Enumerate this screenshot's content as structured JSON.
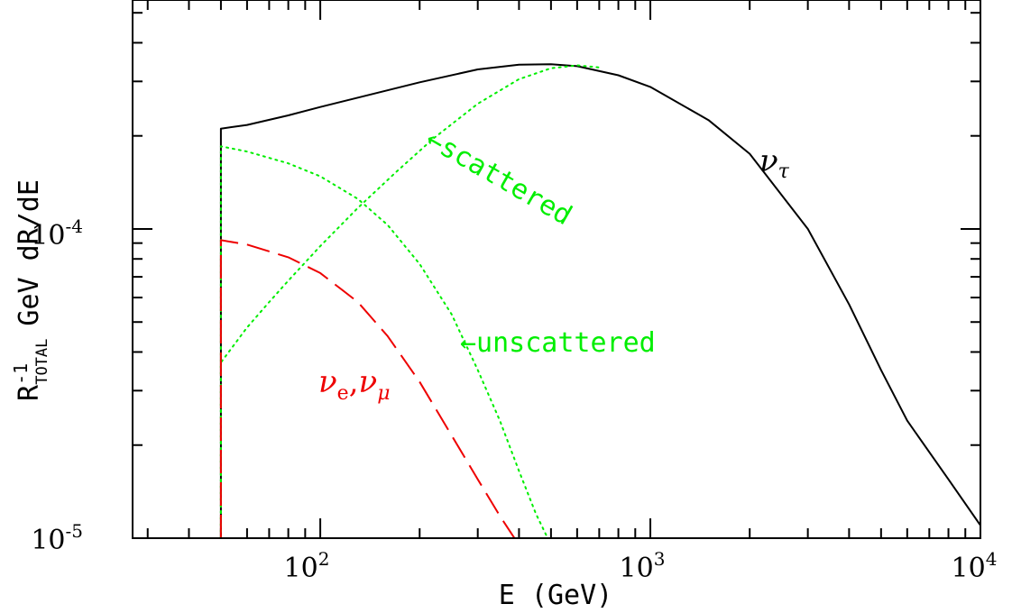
{
  "chart_data": {
    "type": "line",
    "xscale": "log",
    "yscale": "log",
    "xlim": [
      27,
      10000
    ],
    "ylim": [
      1e-05,
      0.00055
    ],
    "xlabel": "E (GeV)",
    "ylabel": {
      "base": "R",
      "sup": "-1",
      "sub": "TOTAL",
      "rest": "GeV dR/dE"
    },
    "x_ticks": [
      {
        "value": 100,
        "mantissa": "10",
        "exp": "2"
      },
      {
        "value": 1000,
        "mantissa": "10",
        "exp": "3"
      },
      {
        "value": 10000,
        "mantissa": "10",
        "exp": "4"
      }
    ],
    "y_ticks": [
      {
        "value": 1e-05,
        "mantissa": "10",
        "exp": "-5"
      },
      {
        "value": 0.0001,
        "mantissa": "10",
        "exp": "-4"
      }
    ],
    "series": [
      {
        "name": "nu-tau",
        "color": "#000000",
        "style": "solid",
        "x": [
          50,
          50,
          60,
          80,
          100,
          150,
          200,
          300,
          400,
          500,
          600,
          800,
          1000,
          1500,
          2000,
          3000,
          4000,
          5000,
          6000,
          8000,
          10000
        ],
        "y": [
          1e-05,
          0.000211,
          0.000217,
          0.000233,
          0.000248,
          0.000276,
          0.000298,
          0.000328,
          0.00034,
          0.000341,
          0.000336,
          0.000314,
          0.000288,
          0.000225,
          0.000175,
          0.0001,
          5.7e-05,
          3.5e-05,
          2.4e-05,
          1.55e-05,
          1.1e-05
        ]
      },
      {
        "name": "scattered",
        "color": "#00ee00",
        "style": "dotted",
        "x": [
          50,
          50,
          60,
          70,
          80,
          100,
          130,
          170,
          220,
          300,
          400,
          500,
          600,
          700
        ],
        "y": [
          1e-05,
          3.7e-05,
          4.8e-05,
          5.8e-05,
          6.8e-05,
          8.8e-05,
          0.000117,
          0.000153,
          0.000196,
          0.000254,
          0.000305,
          0.000331,
          0.000338,
          0.000333
        ]
      },
      {
        "name": "unscattered",
        "color": "#00ee00",
        "style": "dotted",
        "x": [
          50,
          50,
          60,
          80,
          100,
          130,
          160,
          200,
          250,
          300,
          350,
          400,
          450,
          500
        ],
        "y": [
          1e-05,
          0.000185,
          0.000178,
          0.000163,
          0.000148,
          0.000125,
          0.000103,
          7.7e-05,
          5.3e-05,
          3.5e-05,
          2.4e-05,
          1.65e-05,
          1.2e-05,
          9.5e-06
        ]
      },
      {
        "name": "nu-e, nu-mu",
        "color": "#ee0000",
        "style": "dashed",
        "x": [
          50,
          50,
          60,
          80,
          100,
          130,
          160,
          200,
          250,
          300,
          350,
          400
        ],
        "y": [
          1e-05,
          9.2e-05,
          8.9e-05,
          8.1e-05,
          7.2e-05,
          5.8e-05,
          4.5e-05,
          3.2e-05,
          2.15e-05,
          1.55e-05,
          1.18e-05,
          9.5e-06
        ]
      }
    ],
    "annotations": {
      "scattered": {
        "text": "←scattered",
        "color": "#00ee00"
      },
      "unscattered": {
        "text": "←unscattered",
        "color": "#00ee00"
      },
      "nu_tau": {
        "greek": "ν",
        "sub": "τ",
        "color": "#000000"
      },
      "nu_e_mu": {
        "greek1": "ν",
        "sub1": "e",
        "comma": ",",
        "greek2": "ν",
        "sub2": "μ",
        "color": "#ee0000"
      }
    }
  }
}
